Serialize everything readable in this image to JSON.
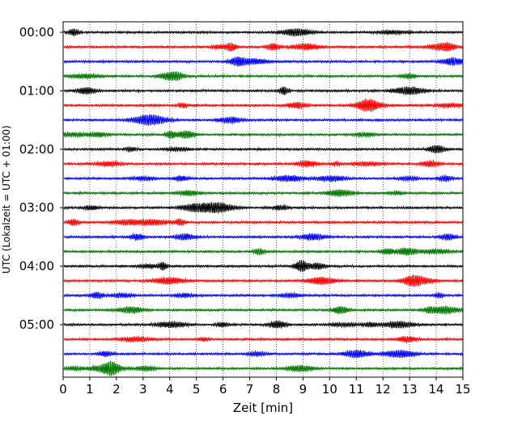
{
  "chart_data": {
    "type": "line",
    "subtype": "helicorder",
    "title": "",
    "xlabel": "Zeit  [min]",
    "ylabel": "UTC (Lokalzeit = UTC + 01:00)",
    "xlim": [
      0,
      15
    ],
    "x_ticks": [
      "0",
      "1",
      "2",
      "3",
      "4",
      "5",
      "6",
      "7",
      "8",
      "9",
      "10",
      "11",
      "12",
      "13",
      "14",
      "15"
    ],
    "y_ticks": [
      "00:00",
      "01:00",
      "02:00",
      "03:00",
      "04:00",
      "05:00"
    ],
    "trace_interval_min": 15,
    "trace_count": 24,
    "trace_colors": [
      "#000000",
      "#ff0000",
      "#0000ff",
      "#007700"
    ],
    "grid": "x-dotted",
    "legend": "none"
  }
}
